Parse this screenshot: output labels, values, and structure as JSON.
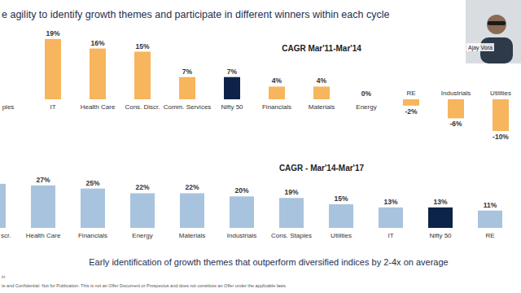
{
  "slide": {
    "heading": "e agility to identify growth themes and participate in different winners within each cycle",
    "footnote": "Early identification of growth themes that outperform diversified indices by 2-4x on average",
    "source": "in",
    "disclaimer": "te and Confidential- Not for Publication. This is not an Offer Document or Prospectus and does not constitute an Offer under the applicable laws.",
    "presenter": "Ajay Vora"
  },
  "chart_data": [
    {
      "type": "bar",
      "title": "CAGR Mar'11-Mar'14",
      "categories": [
        "ples",
        "IT",
        "Health Care",
        "Cons. Discr.",
        "Comm. Services",
        "Nifty 50",
        "Financials",
        "Materials",
        "Energy",
        "RE",
        "Industrials",
        "Utilities"
      ],
      "values": [
        null,
        19,
        16,
        15,
        7,
        7,
        4,
        4,
        0,
        -2,
        -6,
        -10
      ],
      "value_labels": [
        null,
        "19%",
        "16%",
        "15%",
        "7%",
        "7%",
        "4%",
        "4%",
        "0%",
        "-2%",
        "-6%",
        "-10%"
      ],
      "colors": [
        "#f7b55d",
        "#f7b55d",
        "#f7b55d",
        "#f7b55d",
        "#f7b55d",
        "#0d2347",
        "#f7b55d",
        "#f7b55d",
        "#f7b55d",
        "#f7b55d",
        "#f7b55d",
        "#f7b55d"
      ],
      "ylim": [
        -12,
        20
      ],
      "data_labels": true,
      "tick_labels": "x"
    },
    {
      "type": "bar",
      "title": "CAGR - Mar'14-Mar'17",
      "categories": [
        "scr.",
        "Health Care",
        "Financials",
        "Energy",
        "Materials",
        "Industrials",
        "Cons. Staples",
        "Utilities",
        "IT",
        "Nifty 50",
        "RE"
      ],
      "values": [
        28,
        27,
        25,
        22,
        22,
        20,
        19,
        15,
        13,
        13,
        11
      ],
      "value_labels": [
        null,
        "27%",
        "25%",
        "22%",
        "22%",
        "20%",
        "19%",
        "15%",
        "13%",
        "13%",
        "11%"
      ],
      "colors": [
        "#a8c3dd",
        "#a8c3dd",
        "#a8c3dd",
        "#a8c3dd",
        "#a8c3dd",
        "#a8c3dd",
        "#a8c3dd",
        "#a8c3dd",
        "#a8c3dd",
        "#0d2347",
        "#a8c3dd"
      ],
      "ylim": [
        0,
        30
      ],
      "data_labels": true,
      "tick_labels": "x"
    }
  ]
}
